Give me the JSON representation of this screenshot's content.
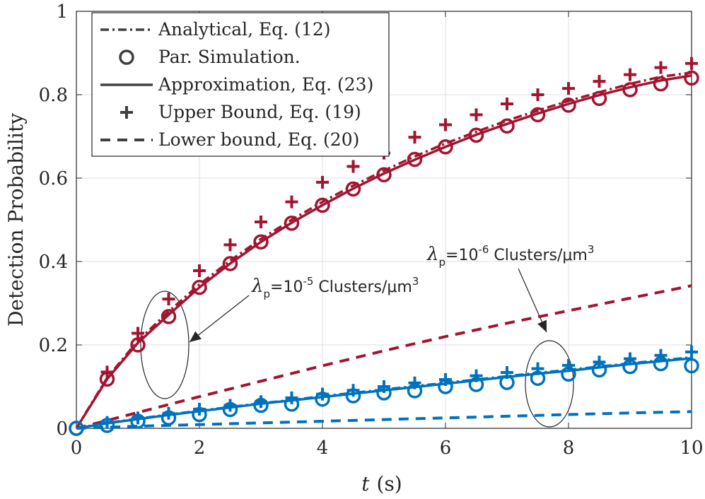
{
  "chart_data": {
    "type": "line",
    "xlabel_italic": "t",
    "xlabel_unit": "(s)",
    "ylabel": "Detection Probability",
    "xlim": [
      0,
      10
    ],
    "ylim": [
      0,
      1
    ],
    "xticks": [
      0,
      2,
      4,
      6,
      8,
      10
    ],
    "xtick_labels": [
      "0",
      "2",
      "4",
      "6",
      "8",
      "10"
    ],
    "yticks": [
      0,
      0.2,
      0.4,
      0.6,
      0.8,
      1
    ],
    "ytick_labels": [
      "0",
      "0.2",
      "0.4",
      "0.6",
      "0.8",
      "1"
    ],
    "grid": true,
    "legend_position": "top-left",
    "legend": [
      {
        "label": "Analytical, Eq. (12)",
        "style": "dashdot"
      },
      {
        "label": "Par. Simulation.",
        "style": "circle"
      },
      {
        "label": "Approximation, Eq. (23)",
        "style": "solid"
      },
      {
        "label": "Upper Bound, Eq. (19)",
        "style": "plus"
      },
      {
        "label": "Lower bound, Eq. (20)",
        "style": "dashed"
      }
    ],
    "colors": {
      "red": "#a2142f",
      "blue": "#0072bd",
      "legend": "#404040"
    },
    "groups": [
      {
        "color": "red",
        "annotation": {
          "prefix": "λ",
          "sub": "p",
          "mid": "=10",
          "sup": "-5",
          "suffix": " Clusters/μm",
          "sup2": "3"
        },
        "ellipse_at": [
          1.45,
          0.27
        ],
        "series": {
          "analytical": {
            "x": [
              0,
              0.5,
              1,
              1.5,
              2,
              2.5,
              3,
              3.5,
              4,
              4.5,
              5,
              5.5,
              6,
              6.5,
              7,
              7.5,
              8,
              8.5,
              9,
              9.5,
              10
            ],
            "y": [
              0,
              0.121,
              0.21,
              0.28,
              0.345,
              0.402,
              0.454,
              0.5,
              0.543,
              0.582,
              0.618,
              0.652,
              0.683,
              0.711,
              0.738,
              0.762,
              0.785,
              0.806,
              0.826,
              0.843,
              0.853
            ]
          },
          "simulation": {
            "x": [
              0,
              0.5,
              1,
              1.5,
              2,
              2.5,
              3,
              3.5,
              4,
              4.5,
              5,
              5.5,
              6,
              6.5,
              7,
              7.5,
              8,
              8.5,
              9,
              9.5,
              10
            ],
            "y": [
              0,
              0.118,
              0.2,
              0.268,
              0.338,
              0.395,
              0.447,
              0.492,
              0.535,
              0.574,
              0.608,
              0.645,
              0.675,
              0.703,
              0.725,
              0.752,
              0.775,
              0.791,
              0.812,
              0.826,
              0.84
            ]
          },
          "approximation": {
            "x": [
              0,
              0.5,
              1,
              1.5,
              2,
              2.5,
              3,
              3.5,
              4,
              4.5,
              5,
              5.5,
              6,
              6.5,
              7,
              7.5,
              8,
              8.5,
              9,
              9.5,
              10
            ],
            "y": [
              0,
              0.118,
              0.205,
              0.272,
              0.338,
              0.395,
              0.447,
              0.493,
              0.535,
              0.575,
              0.611,
              0.644,
              0.675,
              0.704,
              0.73,
              0.755,
              0.778,
              0.799,
              0.818,
              0.834,
              0.846
            ]
          },
          "upper": {
            "x": [
              0.5,
              1,
              1.5,
              2,
              2.5,
              3,
              3.5,
              4,
              4.5,
              5,
              5.5,
              6,
              6.5,
              7,
              7.5,
              8,
              8.5,
              9,
              9.5,
              10
            ],
            "y": [
              0.135,
              0.228,
              0.31,
              0.378,
              0.44,
              0.495,
              0.543,
              0.59,
              0.628,
              0.66,
              0.698,
              0.728,
              0.752,
              0.778,
              0.8,
              0.815,
              0.832,
              0.848,
              0.865,
              0.875
            ]
          },
          "lower": {
            "x": [
              0,
              1,
              2,
              3,
              4,
              5,
              6,
              7,
              8,
              9,
              10
            ],
            "y": [
              0,
              0.038,
              0.076,
              0.113,
              0.15,
              0.186,
              0.22,
              0.252,
              0.282,
              0.312,
              0.342
            ]
          }
        }
      },
      {
        "color": "blue",
        "annotation": {
          "prefix": "λ",
          "sub": "p",
          "mid": "=10",
          "sup": "-6",
          "suffix": " Clusters/μm",
          "sup2": "3"
        },
        "ellipse_at": [
          7.68,
          0.14
        ],
        "series": {
          "analytical": {
            "x": [
              0,
              0.5,
              1,
              1.5,
              2,
              2.5,
              3,
              3.5,
              4,
              4.5,
              5,
              5.5,
              6,
              6.5,
              7,
              7.5,
              8,
              8.5,
              9,
              9.5,
              10
            ],
            "y": [
              0,
              0.013,
              0.023,
              0.033,
              0.042,
              0.051,
              0.06,
              0.068,
              0.077,
              0.085,
              0.093,
              0.101,
              0.109,
              0.117,
              0.125,
              0.133,
              0.14,
              0.148,
              0.156,
              0.163,
              0.17
            ]
          },
          "simulation": {
            "x": [
              0,
              0.5,
              1,
              1.5,
              2,
              2.5,
              3,
              3.5,
              4,
              4.5,
              5,
              5.5,
              6,
              6.5,
              7,
              7.5,
              8,
              8.5,
              9,
              9.5,
              10
            ],
            "y": [
              0,
              0.007,
              0.017,
              0.025,
              0.033,
              0.045,
              0.055,
              0.058,
              0.07,
              0.078,
              0.085,
              0.09,
              0.1,
              0.105,
              0.11,
              0.12,
              0.13,
              0.14,
              0.148,
              0.155,
              0.15
            ]
          },
          "approximation": {
            "x": [
              0,
              0.5,
              1,
              1.5,
              2,
              2.5,
              3,
              3.5,
              4,
              4.5,
              5,
              5.5,
              6,
              6.5,
              7,
              7.5,
              8,
              8.5,
              9,
              9.5,
              10
            ],
            "y": [
              0,
              0.012,
              0.022,
              0.032,
              0.041,
              0.05,
              0.059,
              0.067,
              0.075,
              0.083,
              0.091,
              0.099,
              0.107,
              0.115,
              0.123,
              0.131,
              0.138,
              0.146,
              0.154,
              0.161,
              0.168
            ]
          },
          "upper": {
            "x": [
              0.5,
              1,
              1.5,
              2,
              2.5,
              3,
              3.5,
              4,
              4.5,
              5,
              5.5,
              6,
              6.5,
              7,
              7.5,
              8,
              8.5,
              9,
              9.5,
              10
            ],
            "y": [
              0.014,
              0.025,
              0.036,
              0.046,
              0.055,
              0.064,
              0.073,
              0.082,
              0.091,
              0.1,
              0.109,
              0.117,
              0.126,
              0.134,
              0.143,
              0.151,
              0.159,
              0.167,
              0.175,
              0.183
            ]
          },
          "lower": {
            "x": [
              0,
              1,
              2,
              3,
              4,
              5,
              6,
              7,
              8,
              9,
              10
            ],
            "y": [
              0,
              0.005,
              0.009,
              0.013,
              0.017,
              0.021,
              0.025,
              0.029,
              0.033,
              0.037,
              0.04
            ]
          }
        }
      }
    ]
  }
}
